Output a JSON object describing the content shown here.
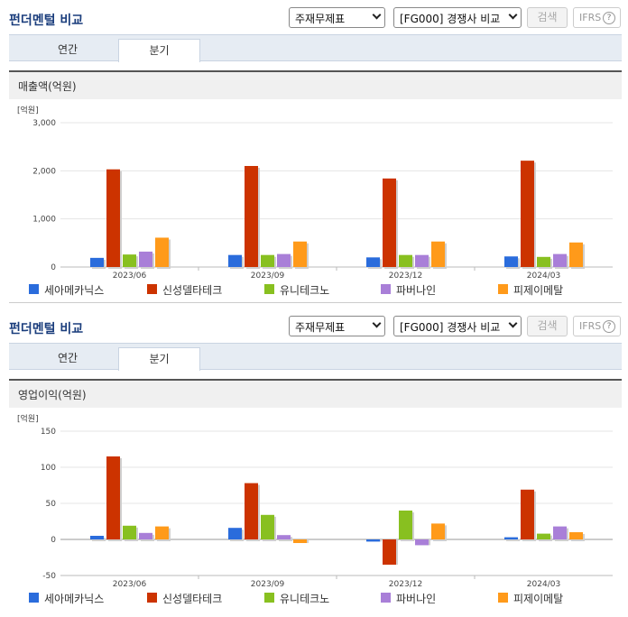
{
  "colors": {
    "series": [
      "#2a6cdc",
      "#cc3300",
      "#88c020",
      "#a97fd8",
      "#ff9a1a"
    ],
    "accent_title": "#1a3d7c",
    "tab_bg": "#e6ecf3"
  },
  "panels": [
    {
      "title": "펀더멘털 비교",
      "select1": "주재무제표",
      "select2": "[FG000] 경쟁사 비교",
      "search_label": "검색",
      "ifrs_label": "IFRS",
      "help_label": "?",
      "tabs": [
        "연간",
        "분기"
      ],
      "active_tab": "분기",
      "subtitle": "매출액(억원)"
    },
    {
      "title": "펀더멘털 비교",
      "select1": "주재무제표",
      "select2": "[FG000] 경쟁사 비교",
      "search_label": "검색",
      "ifrs_label": "IFRS",
      "help_label": "?",
      "tabs": [
        "연간",
        "분기"
      ],
      "active_tab": "분기",
      "subtitle": "영업이익(억원)"
    }
  ],
  "chart_data": [
    {
      "type": "bar",
      "unit_label": "[억원]",
      "categories": [
        "2023/06",
        "2023/09",
        "2023/12",
        "2024/03"
      ],
      "ylim": [
        0,
        3000
      ],
      "yticks": [
        "3,000",
        "2,000",
        "1,000",
        "0"
      ],
      "ytick_values": [
        3000,
        2000,
        1000,
        0
      ],
      "series": [
        {
          "name": "세아메카닉스",
          "values": [
            190,
            250,
            200,
            220
          ]
        },
        {
          "name": "신성델타테크",
          "values": [
            2030,
            2100,
            1840,
            2210
          ]
        },
        {
          "name": "유니테크노",
          "values": [
            260,
            250,
            250,
            210
          ]
        },
        {
          "name": "파버나인",
          "values": [
            320,
            270,
            250,
            270
          ]
        },
        {
          "name": "피제이메탈",
          "values": [
            610,
            530,
            530,
            510
          ]
        }
      ]
    },
    {
      "type": "bar",
      "unit_label": "[억원]",
      "categories": [
        "2023/06",
        "2023/09",
        "2023/12",
        "2024/03"
      ],
      "ylim": [
        -50,
        150
      ],
      "yticks": [
        "150",
        "100",
        "50",
        "0",
        "-50"
      ],
      "ytick_values": [
        150,
        100,
        50,
        0,
        -50
      ],
      "series": [
        {
          "name": "세아메카닉스",
          "values": [
            5,
            16,
            -3,
            3
          ]
        },
        {
          "name": "신성델타테크",
          "values": [
            115,
            78,
            -35,
            69
          ]
        },
        {
          "name": "유니테크노",
          "values": [
            19,
            34,
            40,
            8
          ]
        },
        {
          "name": "파버나인",
          "values": [
            9,
            6,
            -8,
            18
          ]
        },
        {
          "name": "피제이메탈",
          "values": [
            18,
            -5,
            22,
            10
          ]
        }
      ]
    }
  ]
}
